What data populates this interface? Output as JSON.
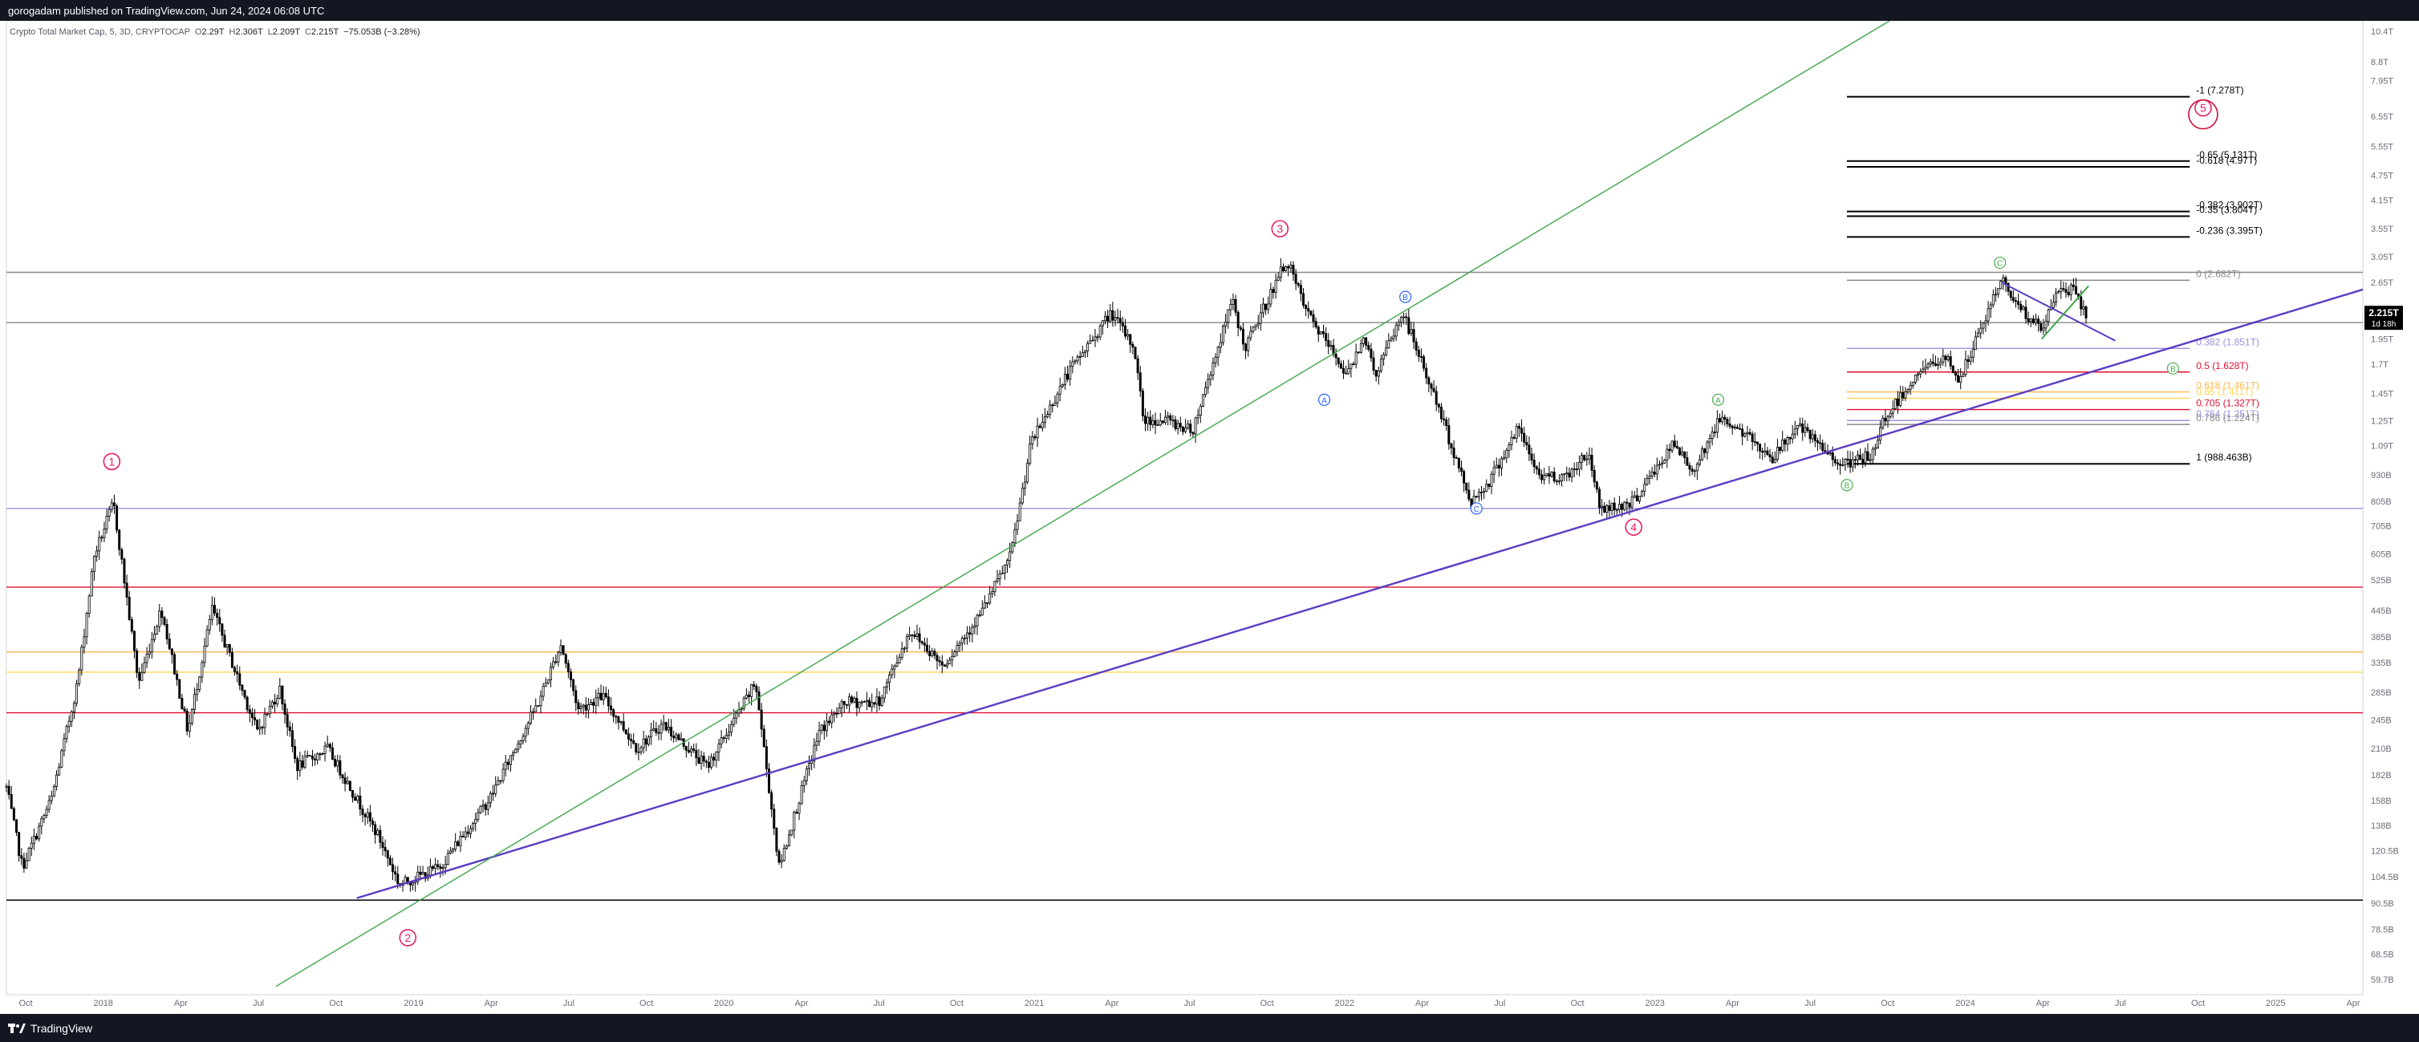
{
  "header": {
    "publisher": "gorogadam published on TradingView.com, Jun 24, 2024 06:08 UTC"
  },
  "footer": {
    "brand": "TradingView",
    "brand_icon": "tradingview-logo-icon"
  },
  "legend": {
    "symbol": "Crypto Total Market Cap, 5, 3D, CRYPTOCAP",
    "open_label": "O",
    "open": "2.29T",
    "high_label": "H",
    "high": "2.306T",
    "low_label": "L",
    "low": "2.209T",
    "close_label": "C",
    "close": "2.215T",
    "change": "−75.053B (−3.28%)"
  },
  "colors": {
    "up_candle": "#000000",
    "down_candle": "#000000",
    "wave_primary": "#e91e63",
    "wave_abc_green": "#4caf50",
    "wave_abc_blue": "#2962ff",
    "trendline_purple": "#5b3cc4",
    "trendline_green": "#3fa64a",
    "level_red": "#e0102f",
    "level_orange": "#ffb74d",
    "level_yellow": "#ffd54f",
    "level_lavender": "#9c8fe0",
    "level_gray": "#888888",
    "price_tag_bg": "#000000",
    "price_tag_text": "#ffffff"
  },
  "chart_data": {
    "type": "candlestick",
    "y_scale": "log",
    "ylim": [
      0.055,
      11.0
    ],
    "x_ticks": [
      "Oct",
      "2018",
      "Apr",
      "Jul",
      "Oct",
      "2019",
      "Apr",
      "Jul",
      "Oct",
      "2020",
      "Apr",
      "Jul",
      "Oct",
      "2021",
      "Apr",
      "Jul",
      "Oct",
      "2022",
      "Apr",
      "Jul",
      "Oct",
      "2023",
      "Apr",
      "Jul",
      "Oct",
      "2024",
      "Apr",
      "Jul",
      "Oct",
      "2025",
      "Apr"
    ],
    "y_ticks": [
      "10.4T",
      "8.8T",
      "7.95T",
      "6.55T",
      "5.55T",
      "4.75T",
      "4.15T",
      "3.55T",
      "3.05T",
      "2.65T",
      "1.95T",
      "1.7T",
      "1.45T",
      "1.25T",
      "1.09T",
      "930B",
      "805B",
      "705B",
      "605B",
      "525B",
      "445B",
      "385B",
      "335B",
      "285B",
      "245B",
      "210B",
      "182B",
      "158B",
      "138B",
      "120.5B",
      "104.5B",
      "90.5B",
      "78.5B",
      "68.5B",
      "59.7B"
    ],
    "x_range": [
      "2017-09-01",
      "2025-05-20"
    ],
    "anchors": [
      [
        "2017-09-01",
        0.17
      ],
      [
        "2017-09-20",
        0.11
      ],
      [
        "2017-10-25",
        0.16
      ],
      [
        "2017-11-25",
        0.3
      ],
      [
        "2017-12-15",
        0.6
      ],
      [
        "2018-01-07",
        0.8
      ],
      [
        "2018-02-06",
        0.3
      ],
      [
        "2018-03-05",
        0.45
      ],
      [
        "2018-04-06",
        0.23
      ],
      [
        "2018-05-05",
        0.45
      ],
      [
        "2018-06-28",
        0.23
      ],
      [
        "2018-07-25",
        0.29
      ],
      [
        "2018-08-14",
        0.19
      ],
      [
        "2018-09-20",
        0.21
      ],
      [
        "2018-11-20",
        0.13
      ],
      [
        "2018-12-15",
        0.1
      ],
      [
        "2019-02-01",
        0.11
      ],
      [
        "2019-04-02",
        0.16
      ],
      [
        "2019-05-30",
        0.27
      ],
      [
        "2019-06-26",
        0.37
      ],
      [
        "2019-07-17",
        0.26
      ],
      [
        "2019-08-15",
        0.28
      ],
      [
        "2019-09-25",
        0.21
      ],
      [
        "2019-10-26",
        0.24
      ],
      [
        "2019-12-18",
        0.19
      ],
      [
        "2020-02-14",
        0.3
      ],
      [
        "2020-03-13",
        0.11
      ],
      [
        "2020-04-30",
        0.23
      ],
      [
        "2020-06-01",
        0.27
      ],
      [
        "2020-07-10",
        0.27
      ],
      [
        "2020-08-17",
        0.4
      ],
      [
        "2020-09-25",
        0.33
      ],
      [
        "2020-11-10",
        0.44
      ],
      [
        "2020-12-15",
        0.6
      ],
      [
        "2021-01-08",
        1.1
      ],
      [
        "2021-02-20",
        1.6
      ],
      [
        "2021-04-14",
        2.25
      ],
      [
        "2021-05-12",
        1.85
      ],
      [
        "2021-05-23",
        1.25
      ],
      [
        "2021-06-22",
        1.25
      ],
      [
        "2021-07-20",
        1.18
      ],
      [
        "2021-09-06",
        2.4
      ],
      [
        "2021-09-21",
        1.85
      ],
      [
        "2021-11-10",
        3.0
      ],
      [
        "2021-12-04",
        2.25
      ],
      [
        "2022-01-22",
        1.6
      ],
      [
        "2022-02-10",
        2.0
      ],
      [
        "2022-02-24",
        1.6
      ],
      [
        "2022-03-29",
        2.25
      ],
      [
        "2022-05-10",
        1.35
      ],
      [
        "2022-06-18",
        0.8
      ],
      [
        "2022-07-10",
        0.9
      ],
      [
        "2022-08-14",
        1.2
      ],
      [
        "2022-09-07",
        0.93
      ],
      [
        "2022-10-10",
        0.92
      ],
      [
        "2022-11-05",
        1.05
      ],
      [
        "2022-11-21",
        0.77
      ],
      [
        "2022-12-28",
        0.8
      ],
      [
        "2023-02-16",
        1.1
      ],
      [
        "2023-03-10",
        0.95
      ],
      [
        "2023-04-14",
        1.28
      ],
      [
        "2023-06-15",
        1.02
      ],
      [
        "2023-07-13",
        1.22
      ],
      [
        "2023-08-17",
        1.05
      ],
      [
        "2023-09-11",
        0.98
      ],
      [
        "2023-10-15",
        1.05
      ],
      [
        "2023-10-24",
        1.25
      ],
      [
        "2023-12-08",
        1.65
      ],
      [
        "2024-01-10",
        1.75
      ],
      [
        "2024-01-23",
        1.55
      ],
      [
        "2024-02-20",
        2.1
      ],
      [
        "2024-03-14",
        2.7
      ],
      [
        "2024-04-13",
        2.2
      ],
      [
        "2024-05-01",
        2.05
      ],
      [
        "2024-05-21",
        2.55
      ],
      [
        "2024-06-07",
        2.55
      ],
      [
        "2024-06-23",
        2.215
      ]
    ],
    "horizontal_levels": [
      {
        "price": 2.8,
        "color": "gray",
        "from": "2017-09-01",
        "to": "2025-05-20"
      },
      {
        "price": 2.13,
        "color": "gray",
        "from": "2017-09-01",
        "to": "2025-05-20"
      },
      {
        "price": 0.775,
        "color": "lavender",
        "from": "2017-09-01",
        "to": "2025-05-20"
      },
      {
        "price": 0.505,
        "color": "red",
        "from": "2017-09-01",
        "to": "2025-05-20"
      },
      {
        "price": 0.355,
        "color": "orange",
        "from": "2017-09-01",
        "to": "2025-05-20"
      },
      {
        "price": 0.318,
        "color": "yellow",
        "from": "2017-09-01",
        "to": "2025-05-20"
      },
      {
        "price": 0.255,
        "color": "red",
        "from": "2017-09-01",
        "to": "2025-05-20"
      },
      {
        "price": 0.092,
        "color": "black",
        "from": "2017-09-01",
        "to": "2025-05-20"
      }
    ],
    "fib_levels": [
      {
        "label": "-1 (7.278T)",
        "price": 7.28,
        "color": "black"
      },
      {
        "label": "-0.65 (5.131T)",
        "price": 5.13,
        "color": "black"
      },
      {
        "label": "-0.618 (4.97T)",
        "price": 4.97,
        "color": "black"
      },
      {
        "label": "-0.382 (3.902T)",
        "price": 3.9,
        "color": "black"
      },
      {
        "label": "-0.35 (3.804T)",
        "price": 3.8,
        "color": "black"
      },
      {
        "label": "-0.236 (3.395T)",
        "price": 3.395,
        "color": "black"
      },
      {
        "label": "0 (2.682T)",
        "price": 2.682,
        "color": "gray"
      },
      {
        "label": "0.382 (1.851T)",
        "price": 1.851,
        "color": "lavender"
      },
      {
        "label": "0.5 (1.628T)",
        "price": 1.628,
        "color": "red"
      },
      {
        "label": "0.618 (1.461T)",
        "price": 1.461,
        "color": "orange"
      },
      {
        "label": "0.65 (1.411T)",
        "price": 1.411,
        "color": "yellow"
      },
      {
        "label": "0.705 (1.327T)",
        "price": 1.327,
        "color": "red"
      },
      {
        "label": "0.764 (1.251T)",
        "price": 1.251,
        "color": "lavender"
      },
      {
        "label": "0.786 (1.224T)",
        "price": 1.224,
        "color": "gray"
      },
      {
        "label": "1 (988.463B)",
        "price": 0.988,
        "color": "black"
      }
    ],
    "fib_range": [
      "2023-09-11",
      "2024-10-25"
    ],
    "trendlines": [
      {
        "color": "purple",
        "from": [
          "2018-10-25",
          0.093
        ],
        "to": [
          "2025-05-20",
          2.55
        ]
      },
      {
        "color": "green",
        "from": [
          "2018-07-20",
          0.0575
        ],
        "to": [
          "2023-11-01",
          11.0
        ]
      }
    ],
    "wedge_lines": [
      {
        "from": [
          "2024-03-14",
          2.65
        ],
        "to": [
          "2024-07-28",
          1.93
        ]
      },
      {
        "from": [
          "2024-05-01",
          1.95
        ],
        "to": [
          "2024-06-26",
          2.6
        ]
      }
    ],
    "wave_labels": [
      {
        "text": "1",
        "date": "2018-01-05",
        "price": 1.0,
        "style": "circle",
        "color": "primary"
      },
      {
        "text": "2",
        "date": "2018-12-25",
        "price": 0.075,
        "style": "circle",
        "color": "primary"
      },
      {
        "text": "3",
        "date": "2021-11-02",
        "price": 3.55,
        "style": "circle",
        "color": "primary"
      },
      {
        "text": "4",
        "date": "2022-12-30",
        "price": 0.7,
        "style": "circle",
        "color": "primary"
      },
      {
        "text": "5",
        "date": "2024-11-10",
        "price": 6.85,
        "style": "circle",
        "color": "primary"
      },
      {
        "text": "A",
        "date": "2021-12-25",
        "price": 1.4,
        "style": "small",
        "color": "blue"
      },
      {
        "text": "B",
        "date": "2022-04-01",
        "price": 2.45,
        "style": "small",
        "color": "blue"
      },
      {
        "text": "C",
        "date": "2022-06-25",
        "price": 0.775,
        "style": "small",
        "color": "blue"
      },
      {
        "text": "A",
        "date": "2023-04-10",
        "price": 1.4,
        "style": "small",
        "color": "green"
      },
      {
        "text": "B",
        "date": "2023-09-11",
        "price": 0.88,
        "style": "small",
        "color": "green"
      },
      {
        "text": "C",
        "date": "2024-03-12",
        "price": 2.95,
        "style": "small",
        "color": "green"
      },
      {
        "text": "B",
        "date": "2024-10-05",
        "price": 1.66,
        "style": "small",
        "color": "green"
      }
    ],
    "current_price": {
      "label": "2.215T",
      "countdown": "1d 18h",
      "price": 2.215
    }
  }
}
